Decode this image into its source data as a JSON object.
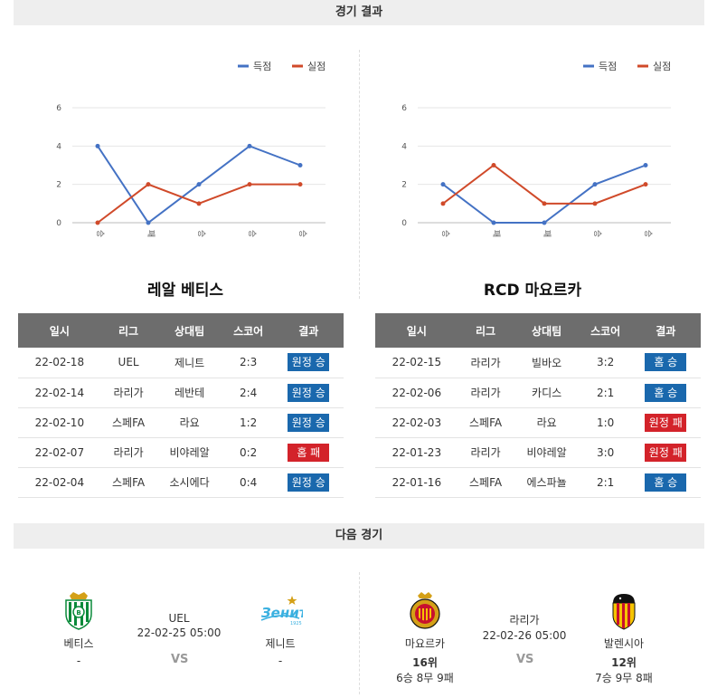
{
  "header": {
    "results_title": "경기 결과",
    "next_title": "다음 경기"
  },
  "legend": {
    "scored": "득점",
    "conceded": "실점"
  },
  "colors": {
    "scored": "#4472c4",
    "conceded": "#d04a2a",
    "win_badge": "#1a68ad",
    "loss_badge": "#d3232a"
  },
  "chart_data": [
    {
      "type": "line",
      "categories": [
        "승",
        "패",
        "승",
        "승",
        "승"
      ],
      "ylim": [
        0,
        6
      ],
      "yticks": [
        0,
        2,
        4,
        6
      ],
      "legend_position": "top-right",
      "grid": true,
      "series": [
        {
          "name": "득점",
          "values": [
            4,
            0,
            2,
            4,
            3
          ]
        },
        {
          "name": "실점",
          "values": [
            0,
            2,
            1,
            2,
            2
          ]
        }
      ]
    },
    {
      "type": "line",
      "categories": [
        "승",
        "패",
        "패",
        "승",
        "승"
      ],
      "ylim": [
        0,
        6
      ],
      "yticks": [
        0,
        2,
        4,
        6
      ],
      "legend_position": "top-right",
      "grid": true,
      "series": [
        {
          "name": "득점",
          "values": [
            2,
            0,
            0,
            2,
            3
          ]
        },
        {
          "name": "실점",
          "values": [
            1,
            3,
            1,
            1,
            2
          ]
        }
      ]
    }
  ],
  "table_headers": [
    "일시",
    "리그",
    "상대팀",
    "스코어",
    "결과"
  ],
  "left_team": {
    "name": "레알 베티스",
    "matches": [
      {
        "date": "22-02-18",
        "league": "UEL",
        "opponent": "제니트",
        "score": "2:3",
        "result": "원정 승",
        "kind": "win"
      },
      {
        "date": "22-02-14",
        "league": "라리가",
        "opponent": "레반테",
        "score": "2:4",
        "result": "원정 승",
        "kind": "win"
      },
      {
        "date": "22-02-10",
        "league": "스페FA",
        "opponent": "라요",
        "score": "1:2",
        "result": "원정 승",
        "kind": "win"
      },
      {
        "date": "22-02-07",
        "league": "라리가",
        "opponent": "비야레알",
        "score": "0:2",
        "result": "홈 패",
        "kind": "loss"
      },
      {
        "date": "22-02-04",
        "league": "스페FA",
        "opponent": "소시에다",
        "score": "0:4",
        "result": "원정 승",
        "kind": "win"
      }
    ]
  },
  "right_team": {
    "name": "RCD 마요르카",
    "matches": [
      {
        "date": "22-02-15",
        "league": "라리가",
        "opponent": "빌바오",
        "score": "3:2",
        "result": "홈 승",
        "kind": "win"
      },
      {
        "date": "22-02-06",
        "league": "라리가",
        "opponent": "카디스",
        "score": "2:1",
        "result": "홈 승",
        "kind": "win"
      },
      {
        "date": "22-02-03",
        "league": "스페FA",
        "opponent": "라요",
        "score": "1:0",
        "result": "원정 패",
        "kind": "loss"
      },
      {
        "date": "22-01-23",
        "league": "라리가",
        "opponent": "비야레알",
        "score": "3:0",
        "result": "원정 패",
        "kind": "loss"
      },
      {
        "date": "22-01-16",
        "league": "스페FA",
        "opponent": "에스파뇰",
        "score": "2:1",
        "result": "홈 승",
        "kind": "win"
      }
    ]
  },
  "next_matches": [
    {
      "league": "UEL",
      "datetime": "22-02-25 05:00",
      "vs": "VS",
      "home": {
        "name": "베티스",
        "rank": "-",
        "record": "",
        "crest": "betis-crest-icon"
      },
      "away": {
        "name": "제니트",
        "rank": "-",
        "record": "",
        "crest": "zenit-crest-icon"
      }
    },
    {
      "league": "라리가",
      "datetime": "22-02-26 05:00",
      "vs": "VS",
      "home": {
        "name": "마요르카",
        "rank": "16위",
        "record": "6승 8무 9패",
        "crest": "mallorca-crest-icon"
      },
      "away": {
        "name": "발렌시아",
        "rank": "12위",
        "record": "7승 9무 8패",
        "crest": "valencia-crest-icon"
      }
    }
  ]
}
